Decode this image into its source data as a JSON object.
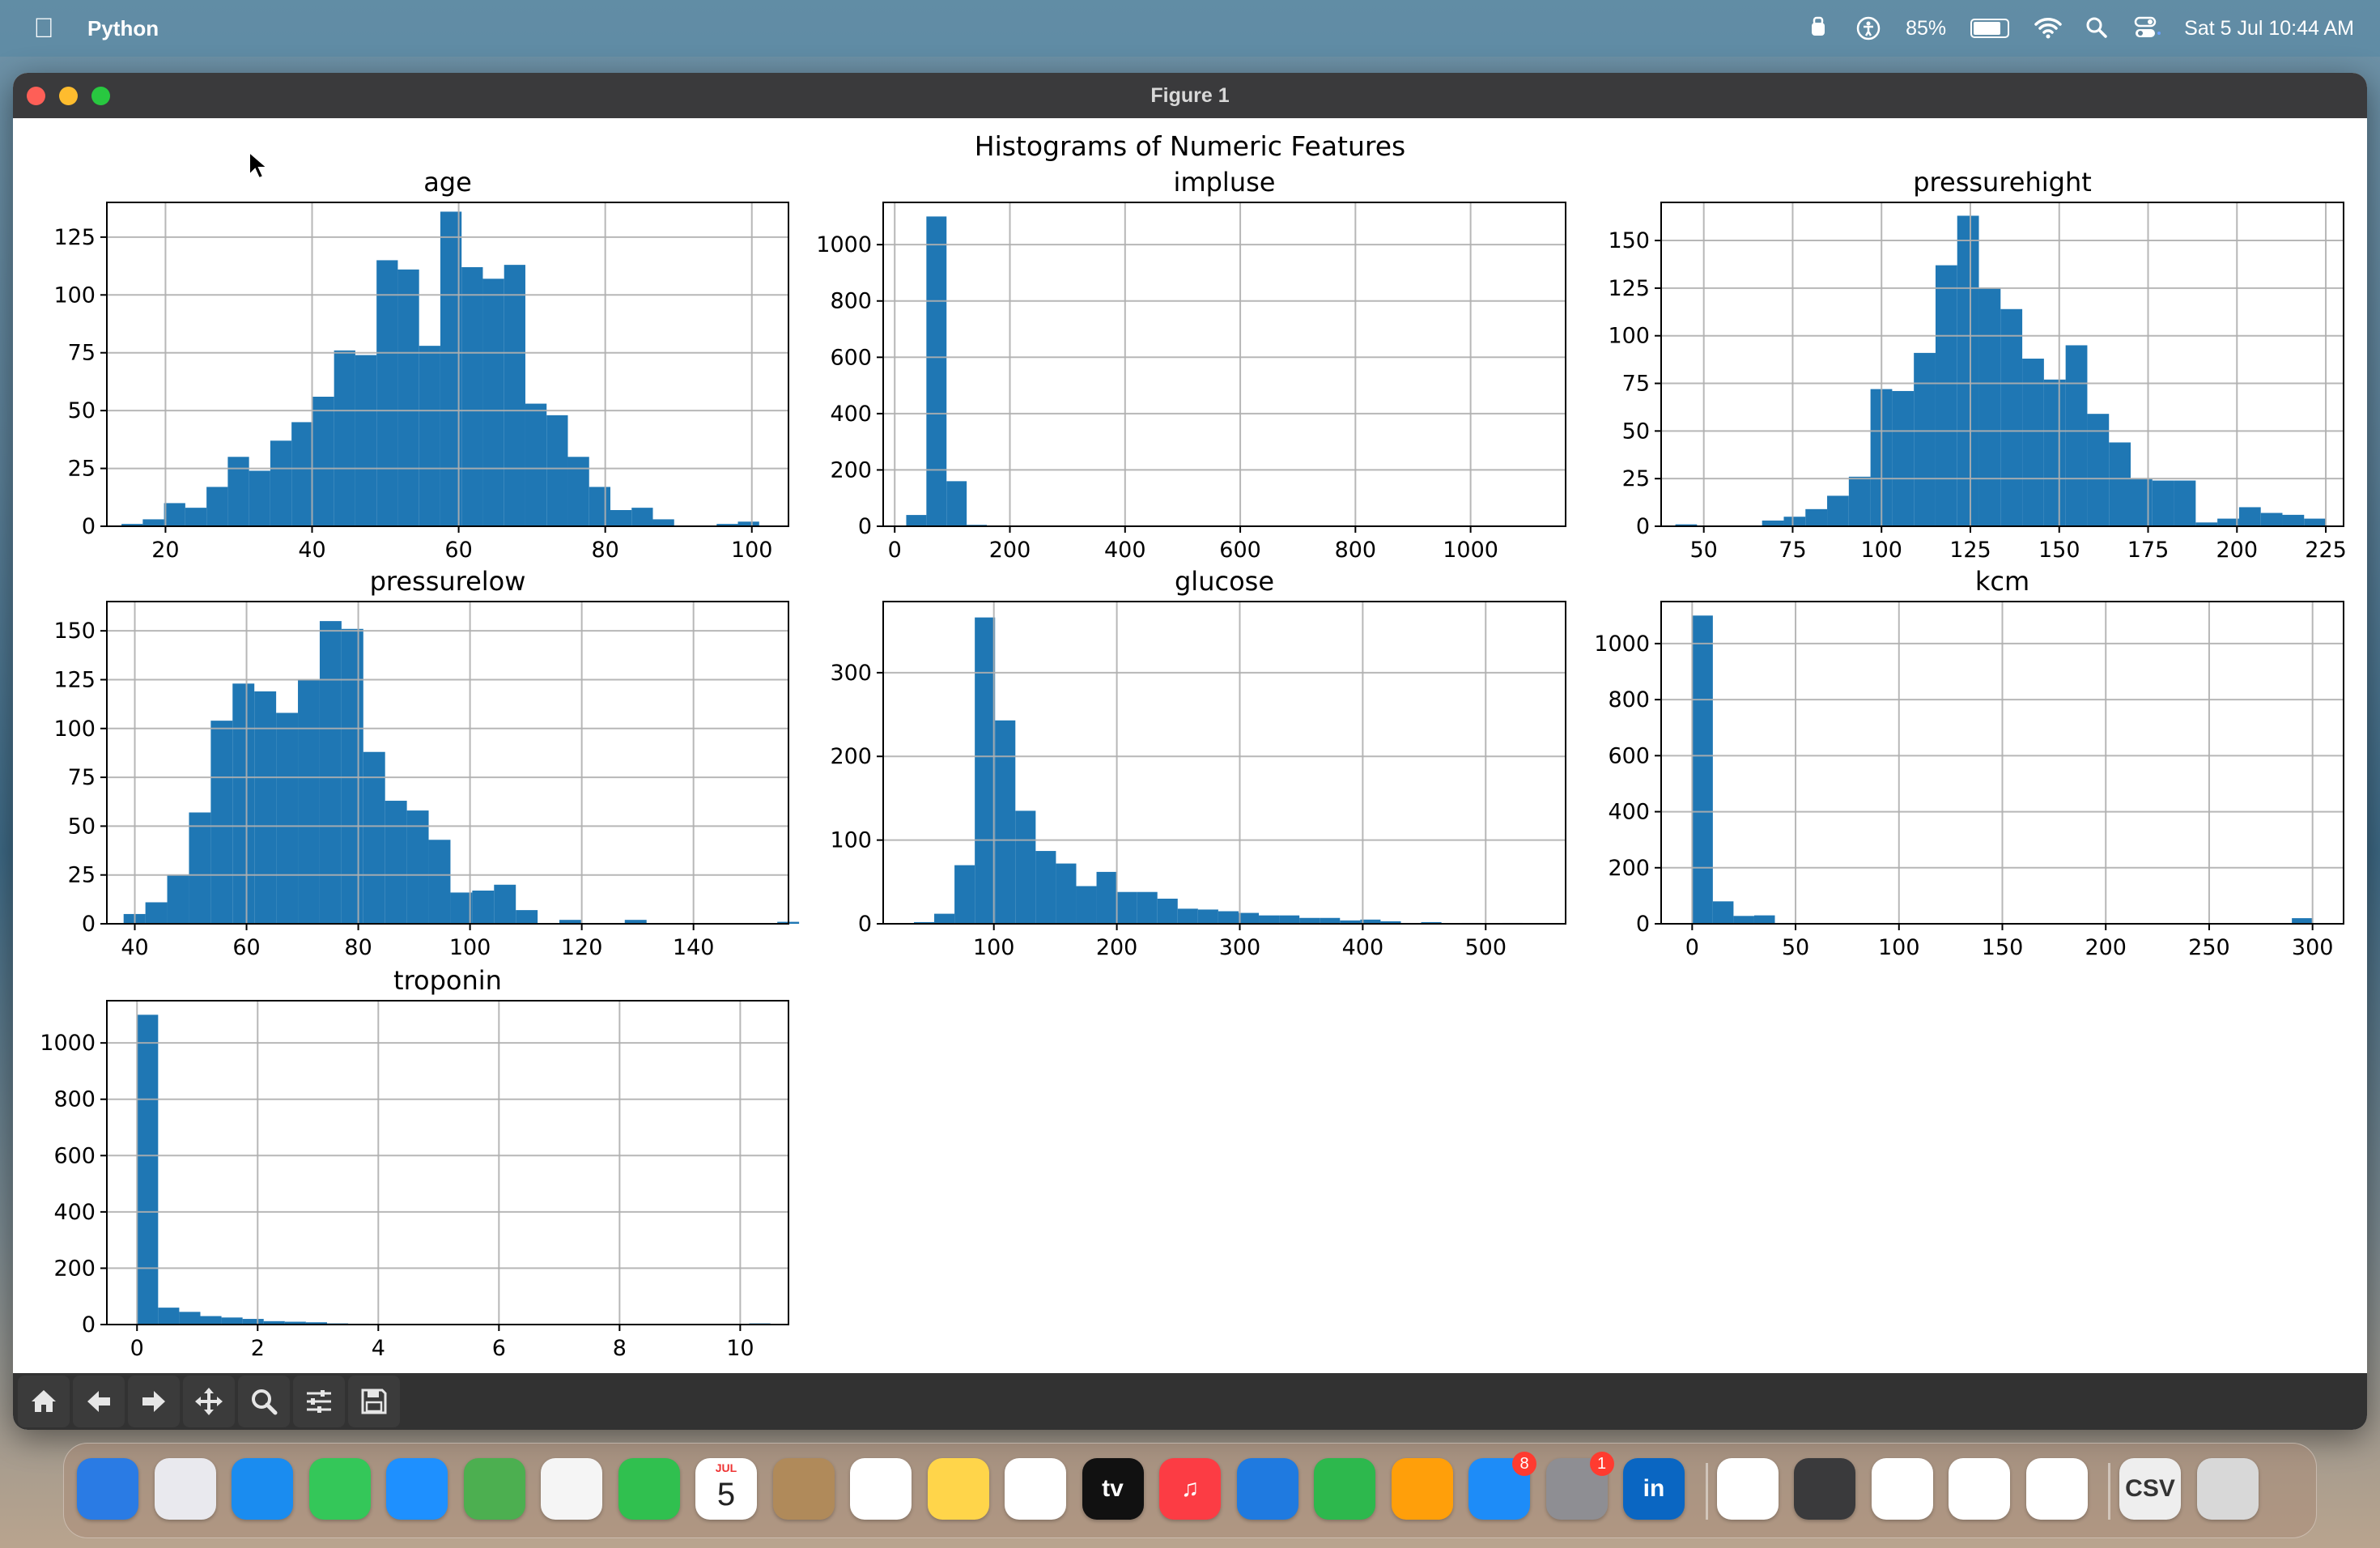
{
  "menubar": {
    "app_name": "Python",
    "battery": "85%",
    "datetime": "Sat 5 Jul  10:44 AM",
    "icons": [
      "apple-icon",
      "vpn-icon",
      "accessibility-icon",
      "battery-icon",
      "wifi-icon",
      "spotlight-icon",
      "control-center-icon"
    ]
  },
  "window": {
    "title": "Figure 1"
  },
  "figure": {
    "suptitle": "Histograms of Numeric Features"
  },
  "toolbar": {
    "buttons": [
      "home-icon",
      "back-icon",
      "forward-icon",
      "pan-icon",
      "zoom-icon",
      "configure-icon",
      "save-icon"
    ]
  },
  "dock": {
    "apps": [
      {
        "name": "finder",
        "label": "",
        "color": "#2a7be4"
      },
      {
        "name": "launchpad",
        "label": "",
        "color": "#e9e9ee"
      },
      {
        "name": "safari",
        "label": "",
        "color": "#1a8cf0"
      },
      {
        "name": "messages",
        "label": "",
        "color": "#34c759"
      },
      {
        "name": "mail",
        "label": "",
        "color": "#1e90ff"
      },
      {
        "name": "maps",
        "label": "",
        "color": "#4caf50"
      },
      {
        "name": "photos",
        "label": "",
        "color": "#f5f5f5"
      },
      {
        "name": "facetime",
        "label": "",
        "color": "#30c04f"
      },
      {
        "name": "calendar",
        "label": "5",
        "sub": "JUL",
        "color": "#ffffff"
      },
      {
        "name": "contacts",
        "label": "",
        "color": "#b08a5a"
      },
      {
        "name": "reminders",
        "label": "",
        "color": "#ffffff"
      },
      {
        "name": "notes",
        "label": "",
        "color": "#ffd54a"
      },
      {
        "name": "freeform",
        "label": "",
        "color": "#ffffff"
      },
      {
        "name": "apple-tv",
        "label": "tv",
        "color": "#111111"
      },
      {
        "name": "music",
        "label": "♫",
        "color": "#fc3c44"
      },
      {
        "name": "keynote",
        "label": "",
        "color": "#1f7ae0"
      },
      {
        "name": "numbers",
        "label": "",
        "color": "#2db84d"
      },
      {
        "name": "pages",
        "label": "",
        "color": "#ff9f0a"
      },
      {
        "name": "app-store",
        "label": "",
        "color": "#1d8cf8",
        "badge": "8"
      },
      {
        "name": "system-settings",
        "label": "",
        "color": "#8e8e93",
        "badge": "1"
      },
      {
        "name": "linkedin",
        "label": "in",
        "color": "#0a66c2"
      },
      {
        "name": "vscode",
        "label": "",
        "color": "#ffffff"
      },
      {
        "name": "quicktime",
        "label": "",
        "color": "#3a3a3c"
      },
      {
        "name": "home",
        "label": "",
        "color": "#ffffff"
      },
      {
        "name": "chrome",
        "label": "",
        "color": "#ffffff"
      },
      {
        "name": "pinwheel",
        "label": "",
        "color": "#ffffff"
      },
      {
        "name": "csv-file",
        "label": "CSV",
        "color": "#eeeeee"
      },
      {
        "name": "trash",
        "label": "",
        "color": "#d8d8d8"
      }
    ]
  },
  "chart_data": [
    {
      "type": "bar",
      "title": "age",
      "xlim": [
        12,
        105
      ],
      "ylim": [
        0,
        140
      ],
      "xticks": [
        20,
        40,
        60,
        80,
        100
      ],
      "yticks": [
        0,
        25,
        50,
        75,
        100,
        125
      ],
      "bins": {
        "start": 14,
        "width": 2.9
      },
      "values": [
        1,
        3,
        10,
        8,
        17,
        30,
        24,
        37,
        45,
        56,
        76,
        74,
        115,
        111,
        78,
        136,
        112,
        107,
        113,
        53,
        48,
        30,
        17,
        7,
        8,
        3,
        0,
        0,
        1,
        2
      ]
    },
    {
      "type": "bar",
      "title": "impluse",
      "xlim": [
        -20,
        1165
      ],
      "ylim": [
        0,
        1150
      ],
      "xticks": [
        0,
        200,
        400,
        600,
        800,
        1000
      ],
      "yticks": [
        0,
        200,
        400,
        600,
        800,
        1000
      ],
      "bins": {
        "start": 20,
        "width": 35
      },
      "values": [
        40,
        1100,
        160,
        5,
        1,
        0,
        0,
        0,
        0,
        0,
        0,
        0,
        0,
        0,
        0,
        0,
        0,
        0,
        0,
        0,
        0,
        0,
        0,
        0,
        0,
        0,
        0,
        0,
        0,
        1
      ]
    },
    {
      "type": "bar",
      "title": "pressurehight",
      "xlim": [
        38,
        230
      ],
      "ylim": [
        0,
        170
      ],
      "xticks": [
        50,
        75,
        100,
        125,
        150,
        175,
        200,
        225
      ],
      "yticks": [
        0,
        25,
        50,
        75,
        100,
        125,
        150
      ],
      "bins": {
        "start": 42,
        "width": 6.1
      },
      "values": [
        1,
        0,
        0,
        0,
        3,
        5,
        9,
        16,
        26,
        72,
        71,
        91,
        137,
        163,
        125,
        114,
        88,
        77,
        95,
        59,
        44,
        25,
        24,
        24,
        2,
        4,
        10,
        7,
        6,
        4
      ]
    },
    {
      "type": "bar",
      "title": "pressurelow",
      "xlim": [
        35,
        157
      ],
      "ylim": [
        0,
        165
      ],
      "xticks": [
        40,
        60,
        80,
        100,
        120,
        140
      ],
      "yticks": [
        0,
        25,
        50,
        75,
        100,
        125,
        150
      ],
      "bins": {
        "start": 38,
        "width": 3.9
      },
      "values": [
        5,
        11,
        25,
        57,
        104,
        123,
        119,
        108,
        125,
        155,
        151,
        88,
        63,
        58,
        43,
        16,
        17,
        20,
        7,
        0,
        2,
        0,
        0,
        2,
        0,
        0,
        0,
        0,
        0,
        0,
        1
      ]
    },
    {
      "type": "bar",
      "title": "glucose",
      "xlim": [
        10,
        565
      ],
      "ylim": [
        0,
        385
      ],
      "xticks": [
        100,
        200,
        300,
        400,
        500
      ],
      "yticks": [
        0,
        100,
        200,
        300
      ],
      "bins": {
        "start": 35,
        "width": 16.5
      },
      "values": [
        2,
        12,
        70,
        366,
        243,
        135,
        87,
        72,
        45,
        62,
        38,
        38,
        30,
        18,
        17,
        15,
        13,
        10,
        10,
        7,
        7,
        4,
        5,
        3,
        1,
        2,
        0,
        1,
        0,
        1
      ]
    },
    {
      "type": "bar",
      "title": "kcm",
      "xlim": [
        -15,
        315
      ],
      "ylim": [
        0,
        1150
      ],
      "xticks": [
        0,
        50,
        100,
        150,
        200,
        250,
        300
      ],
      "yticks": [
        0,
        200,
        400,
        600,
        800,
        1000
      ],
      "bins": {
        "start": 0,
        "width": 10
      },
      "values": [
        1100,
        80,
        28,
        30,
        3,
        2,
        1,
        0,
        2,
        1,
        0,
        0,
        0,
        0,
        0,
        0,
        0,
        0,
        0,
        0,
        0,
        0,
        0,
        0,
        0,
        0,
        0,
        0,
        0,
        20
      ]
    },
    {
      "type": "bar",
      "title": "troponin",
      "xlim": [
        -0.5,
        10.8
      ],
      "ylim": [
        0,
        1150
      ],
      "xticks": [
        0,
        2,
        4,
        6,
        8,
        10
      ],
      "yticks": [
        0,
        200,
        400,
        600,
        800,
        1000
      ],
      "bins": {
        "start": 0,
        "width": 0.35
      },
      "values": [
        1100,
        60,
        45,
        30,
        25,
        20,
        12,
        10,
        8,
        4,
        3,
        2,
        1,
        1,
        1,
        0,
        0,
        0,
        0,
        0,
        0,
        0,
        0,
        0,
        0,
        0,
        0,
        0,
        0,
        4
      ]
    }
  ]
}
